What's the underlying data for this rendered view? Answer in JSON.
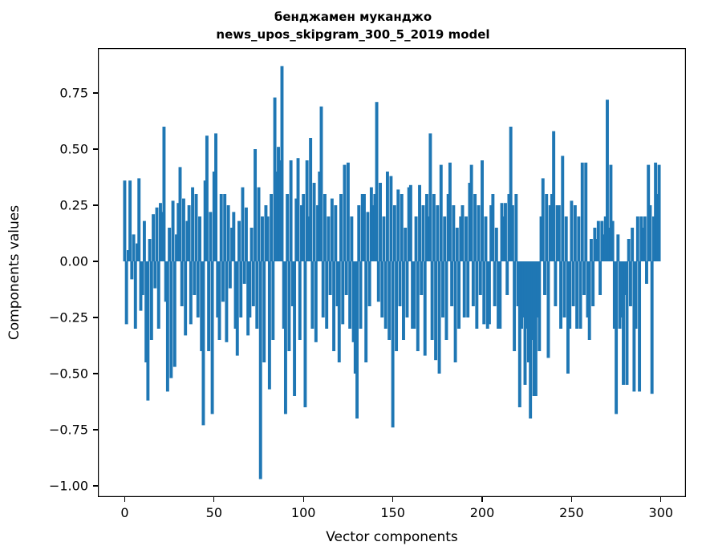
{
  "chart_data": {
    "type": "bar",
    "title_line1": "бенджамен муканджо",
    "title_line2": "news_upos_skipgram_300_5_2019 model",
    "xlabel": "Vector components",
    "ylabel": "Components values",
    "bar_color": "#1f77b4",
    "axes_color": "#000000",
    "xlim": [
      -15,
      314
    ],
    "ylim": [
      -1.05,
      0.95
    ],
    "x_tick_values": [
      0,
      50,
      100,
      150,
      200,
      250,
      300
    ],
    "x_tick_labels": [
      "0",
      "50",
      "100",
      "150",
      "200",
      "250",
      "300"
    ],
    "y_tick_values": [
      0.75,
      0.5,
      0.25,
      0.0,
      -0.25,
      -0.5,
      -0.75,
      -1.0
    ],
    "y_tick_labels": [
      "0.75",
      "0.50",
      "0.25",
      "0.00",
      "−0.25",
      "−0.50",
      "−0.75",
      "−1.00"
    ],
    "x_start": 0,
    "values": [
      0.36,
      -0.28,
      0.05,
      0.36,
      -0.08,
      0.12,
      -0.3,
      0.08,
      0.37,
      -0.22,
      -0.15,
      0.18,
      -0.45,
      -0.62,
      0.1,
      -0.35,
      0.21,
      -0.12,
      0.24,
      -0.3,
      0.26,
      0.22,
      0.6,
      -0.18,
      -0.58,
      0.15,
      -0.52,
      0.27,
      -0.47,
      0.12,
      0.26,
      0.42,
      -0.2,
      0.28,
      -0.33,
      0.18,
      0.25,
      -0.28,
      0.33,
      -0.15,
      0.3,
      -0.25,
      0.2,
      -0.4,
      -0.73,
      0.36,
      0.56,
      -0.4,
      0.22,
      -0.68,
      0.4,
      0.57,
      -0.25,
      -0.35,
      0.3,
      -0.18,
      0.3,
      -0.36,
      0.25,
      -0.12,
      0.15,
      0.22,
      -0.3,
      -0.42,
      0.18,
      -0.25,
      0.33,
      -0.1,
      0.24,
      -0.33,
      -0.25,
      0.15,
      -0.2,
      0.5,
      -0.3,
      0.33,
      -0.97,
      0.2,
      -0.45,
      0.25,
      0.2,
      -0.57,
      0.3,
      -0.35,
      0.73,
      0.4,
      0.51,
      0.45,
      0.87,
      -0.3,
      -0.68,
      0.3,
      -0.4,
      0.45,
      -0.2,
      -0.6,
      0.28,
      0.46,
      -0.35,
      0.25,
      0.3,
      -0.65,
      0.45,
      0.2,
      0.55,
      -0.3,
      0.35,
      -0.36,
      0.25,
      0.4,
      0.69,
      -0.25,
      0.3,
      -0.3,
      0.2,
      -0.15,
      0.28,
      -0.4,
      0.25,
      -0.2,
      -0.45,
      0.3,
      -0.28,
      0.43,
      -0.15,
      0.44,
      -0.3,
      0.2,
      -0.36,
      -0.5,
      -0.7,
      0.25,
      -0.3,
      0.3,
      0.3,
      -0.45,
      0.22,
      -0.2,
      0.33,
      0.25,
      0.3,
      0.71,
      -0.18,
      0.35,
      -0.25,
      0.2,
      -0.3,
      0.4,
      -0.35,
      0.38,
      -0.74,
      0.25,
      -0.4,
      0.32,
      -0.2,
      0.3,
      -0.35,
      0.15,
      -0.25,
      0.33,
      0.34,
      -0.3,
      -0.3,
      0.2,
      -0.4,
      0.34,
      -0.15,
      0.25,
      -0.42,
      0.3,
      0.2,
      0.57,
      -0.35,
      0.3,
      -0.44,
      0.25,
      -0.5,
      0.43,
      -0.25,
      0.2,
      -0.35,
      0.3,
      0.44,
      -0.2,
      0.25,
      -0.45,
      0.15,
      -0.3,
      0.2,
      0.25,
      -0.25,
      0.2,
      -0.25,
      0.35,
      0.43,
      -0.2,
      0.3,
      -0.3,
      0.25,
      -0.15,
      0.45,
      -0.28,
      0.2,
      -0.3,
      -0.28,
      0.25,
      0.3,
      -0.2,
      0.15,
      -0.3,
      -0.3,
      0.26,
      0.2,
      0.26,
      -0.15,
      0.3,
      0.6,
      0.25,
      -0.4,
      0.3,
      -0.2,
      -0.65,
      -0.3,
      -0.25,
      -0.55,
      -0.3,
      -0.45,
      -0.7,
      -0.35,
      -0.6,
      -0.6,
      -0.25,
      -0.4,
      0.2,
      0.37,
      -0.15,
      0.3,
      -0.43,
      0.25,
      0.3,
      0.58,
      -0.2,
      0.25,
      0.25,
      -0.3,
      0.47,
      -0.25,
      0.2,
      -0.5,
      -0.3,
      0.27,
      -0.2,
      0.25,
      -0.3,
      0.2,
      -0.3,
      0.44,
      -0.15,
      0.44,
      -0.25,
      -0.35,
      0.1,
      -0.2,
      0.15,
      0.1,
      0.18,
      -0.15,
      0.18,
      0.12,
      0.2,
      0.72,
      0.15,
      0.43,
      0.18,
      -0.3,
      -0.68,
      0.12,
      -0.3,
      -0.25,
      -0.55,
      -0.15,
      -0.55,
      0.1,
      -0.2,
      0.15,
      -0.58,
      -0.3,
      0.2,
      -0.58,
      0.2,
      0.15,
      0.2,
      -0.1,
      0.43,
      0.25,
      -0.59,
      0.2,
      0.44,
      0.3,
      0.43
    ]
  }
}
